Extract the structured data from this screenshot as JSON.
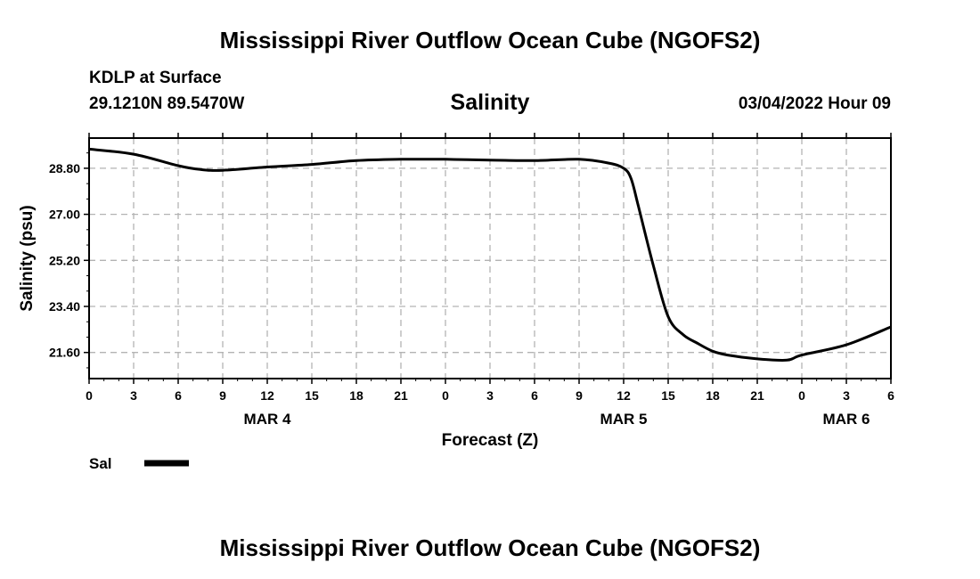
{
  "page": {
    "top_title": "Mississippi River Outflow Ocean Cube (NGOFS2)",
    "bottom_title": "Mississippi River Outflow Ocean Cube (NGOFS2)",
    "station": "KDLP at Surface",
    "coords": "29.1210N  89.5470W",
    "datetime": "03/04/2022 Hour 09"
  },
  "chart_data": {
    "type": "line",
    "title": "Salinity",
    "xlabel": "Forecast (Z)",
    "ylabel": "Salinity (psu)",
    "ylim": [
      20.58,
      29.98
    ],
    "xlim": [
      0,
      54
    ],
    "grid": true,
    "yticks": [
      "21.60",
      "23.40",
      "25.20",
      "27.00",
      "28.80"
    ],
    "ytick_values": [
      21.6,
      23.4,
      25.2,
      27.0,
      28.8
    ],
    "xtick_hours": [
      0,
      3,
      6,
      9,
      12,
      15,
      18,
      21,
      24,
      27,
      30,
      33,
      36,
      39,
      42,
      45,
      48,
      51,
      54
    ],
    "xtick_labels": [
      "0",
      "3",
      "6",
      "9",
      "12",
      "15",
      "18",
      "21",
      "0",
      "3",
      "6",
      "9",
      "12",
      "15",
      "18",
      "21",
      "0",
      "3",
      "6"
    ],
    "date_labels": [
      {
        "hour": 12,
        "label": "MAR 4"
      },
      {
        "hour": 36,
        "label": "MAR 5"
      },
      {
        "hour": 51,
        "label": "MAR 6"
      }
    ],
    "legend": {
      "label": "Sal",
      "position": "bottom-left"
    },
    "series": [
      {
        "name": "Sal",
        "x": [
          0,
          3,
          6,
          7.5,
          9,
          12,
          15,
          18,
          21,
          24,
          27,
          30,
          33,
          35,
          36,
          36.5,
          37,
          38,
          39,
          40,
          41,
          42,
          43,
          45,
          47,
          48,
          51,
          54
        ],
        "y": [
          29.55,
          29.35,
          28.9,
          28.75,
          28.72,
          28.85,
          28.95,
          29.1,
          29.15,
          29.15,
          29.12,
          29.1,
          29.15,
          29.0,
          28.8,
          28.4,
          27.3,
          25.0,
          23.0,
          22.3,
          21.95,
          21.65,
          21.5,
          21.35,
          21.3,
          21.5,
          21.9,
          22.6
        ]
      }
    ]
  }
}
